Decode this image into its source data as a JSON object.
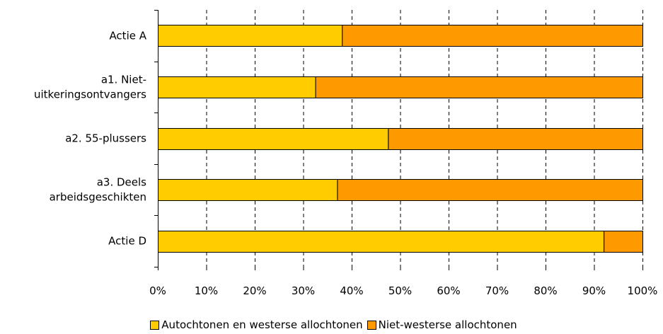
{
  "chart_data": {
    "type": "bar",
    "orientation": "horizontal",
    "stacked": true,
    "percent": true,
    "categories": [
      "Actie A",
      "a1. Niet-uitkeringsontvangers",
      "a2. 55-plussers",
      "a3. Deels arbeidsgeschikten",
      "Actie D"
    ],
    "category_lines": [
      [
        "Actie A"
      ],
      [
        "a1. Niet-",
        "uitkeringsontvangers"
      ],
      [
        "a2. 55-plussers"
      ],
      [
        "a3. Deels",
        "arbeidsgeschikten"
      ],
      [
        "Actie D"
      ]
    ],
    "series": [
      {
        "name": "Autochtonen en westerse allochtonen",
        "values": [
          38,
          32.5,
          47.5,
          37,
          92
        ],
        "color": "#FFCC00"
      },
      {
        "name": "Niet-westerse allochtonen",
        "values": [
          62,
          67.5,
          52.5,
          63,
          8
        ],
        "color": "#FF9900"
      }
    ],
    "xlim": [
      0,
      100
    ],
    "xticks": [
      0,
      10,
      20,
      30,
      40,
      50,
      60,
      70,
      80,
      90,
      100
    ],
    "xtick_labels": [
      "0%",
      "10%",
      "20%",
      "30%",
      "40%",
      "50%",
      "60%",
      "70%",
      "80%",
      "90%",
      "100%"
    ],
    "grid": "vertical dashed",
    "legend_position": "bottom"
  }
}
